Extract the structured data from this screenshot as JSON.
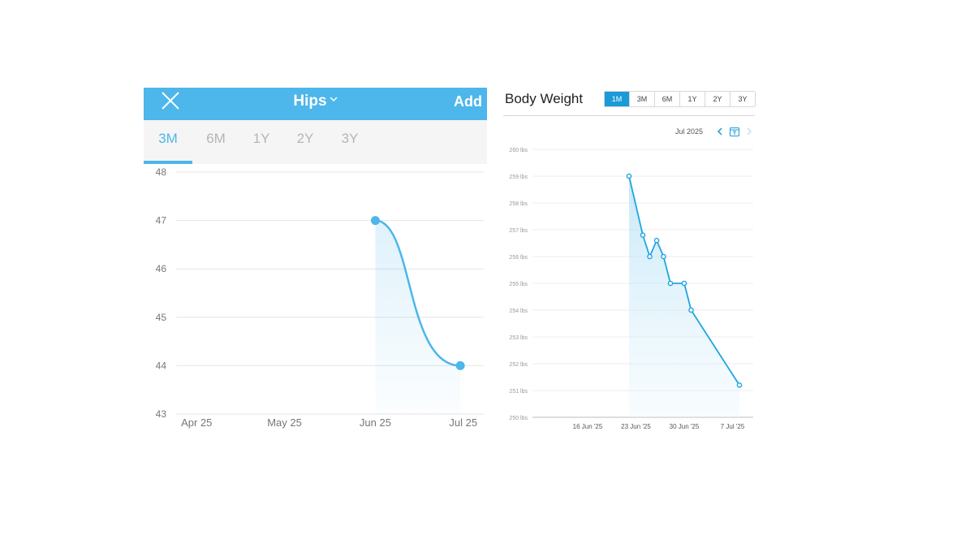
{
  "hips_panel": {
    "title": "Hips",
    "add_label": "Add",
    "header_color": "#4db6ea",
    "tabs": [
      {
        "label": "3M",
        "active": true
      },
      {
        "label": "6M",
        "active": false
      },
      {
        "label": "1Y",
        "active": false
      },
      {
        "label": "2Y",
        "active": false
      },
      {
        "label": "3Y",
        "active": false
      }
    ]
  },
  "weight_panel": {
    "title": "Body Weight",
    "month_label": "Jul 2025",
    "accent_color": "#1a9ad7",
    "tabs": [
      {
        "label": "1M",
        "active": true
      },
      {
        "label": "3M",
        "active": false
      },
      {
        "label": "6M",
        "active": false
      },
      {
        "label": "1Y",
        "active": false
      },
      {
        "label": "2Y",
        "active": false
      },
      {
        "label": "3Y",
        "active": false
      }
    ]
  },
  "chart_data": [
    {
      "type": "area",
      "series": [
        {
          "x": [
            "2025-06-05",
            "2025-07-04"
          ],
          "values": [
            47,
            44
          ]
        }
      ],
      "x_tick_labels": [
        "Apr 25",
        "May 25",
        "Jun 25",
        "Jul 25"
      ],
      "x_tick_dates": [
        "2025-04-05",
        "2025-05-05",
        "2025-06-05",
        "2025-07-05"
      ],
      "y_tick_labels": [
        "48",
        "47",
        "46",
        "45",
        "44",
        "43"
      ],
      "ylim": [
        43,
        48
      ],
      "xlim": [
        "2025-03-29",
        "2025-07-12"
      ],
      "grid": true,
      "curve": "smooth",
      "color": "#4db6ea"
    },
    {
      "type": "area",
      "series": [
        {
          "x": [
            "2025-06-22",
            "2025-06-24",
            "2025-06-25",
            "2025-06-26",
            "2025-06-27",
            "2025-06-28",
            "2025-06-30",
            "2025-07-01",
            "2025-07-08"
          ],
          "values": [
            259,
            256.8,
            256,
            256.6,
            256,
            255,
            255,
            254,
            251.2
          ]
        }
      ],
      "x_tick_labels": [
        "16 Jun '25",
        "23 Jun '25",
        "30 Jun '25",
        "7 Jul '25"
      ],
      "x_tick_dates": [
        "2025-06-16",
        "2025-06-23",
        "2025-06-30",
        "2025-07-07"
      ],
      "y_tick_labels": [
        "260 lbs",
        "259 lbs",
        "258 lbs",
        "257 lbs",
        "256 lbs",
        "255 lbs",
        "254 lbs",
        "253 lbs",
        "252 lbs",
        "251 lbs",
        "250 lbs"
      ],
      "ylim": [
        250,
        260
      ],
      "xlim": [
        "2025-06-08",
        "2025-07-10"
      ],
      "grid": true,
      "color": "#1ea6e0"
    }
  ]
}
